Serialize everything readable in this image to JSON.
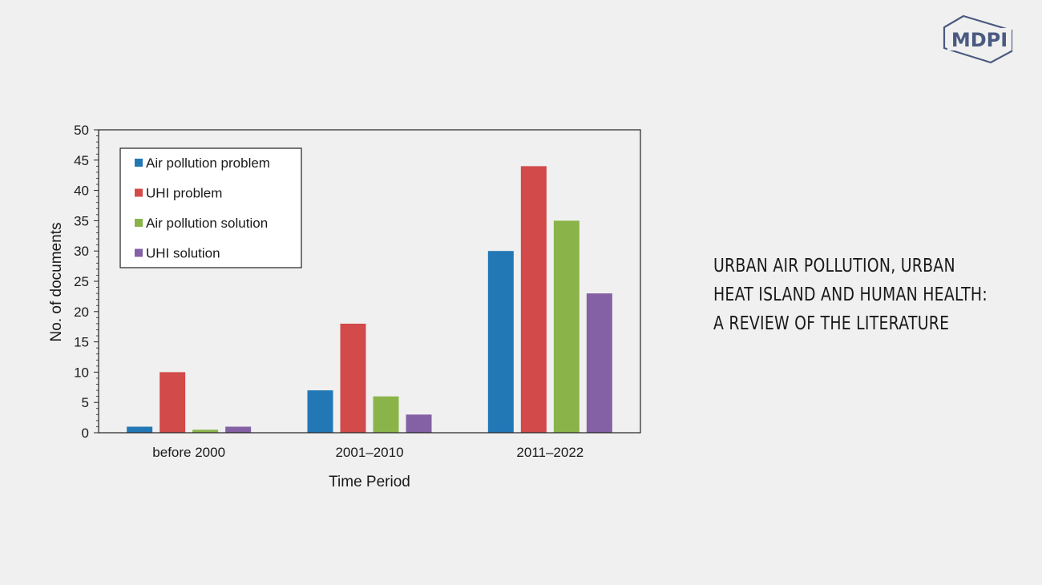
{
  "publisher_logo": "MDPI",
  "headline": {
    "line1": "URBAN AIR POLLUTION, URBAN",
    "line2": "HEAT ISLAND AND HUMAN HEALTH:",
    "line3": "A REVIEW OF THE LITERATURE"
  },
  "chart_data": {
    "type": "bar",
    "title": "",
    "xlabel": "Time Period",
    "ylabel": "No. of documents",
    "ylim": [
      0,
      50
    ],
    "yticks": [
      0,
      5,
      10,
      15,
      20,
      25,
      30,
      35,
      40,
      45,
      50
    ],
    "categories": [
      "before 2000",
      "2001–2010",
      "2011–2022"
    ],
    "legend_position": "top-left",
    "grid": false,
    "series": [
      {
        "name": "Air pollution problem",
        "color": "#2278b5",
        "values": [
          1,
          7,
          30
        ]
      },
      {
        "name": "UHI problem",
        "color": "#d24a4a",
        "values": [
          10,
          18,
          44
        ]
      },
      {
        "name": "Air pollution solution",
        "color": "#8ab44a",
        "values": [
          0.5,
          6,
          35
        ]
      },
      {
        "name": "UHI solution",
        "color": "#8460a4",
        "values": [
          1,
          3,
          23
        ]
      }
    ]
  }
}
